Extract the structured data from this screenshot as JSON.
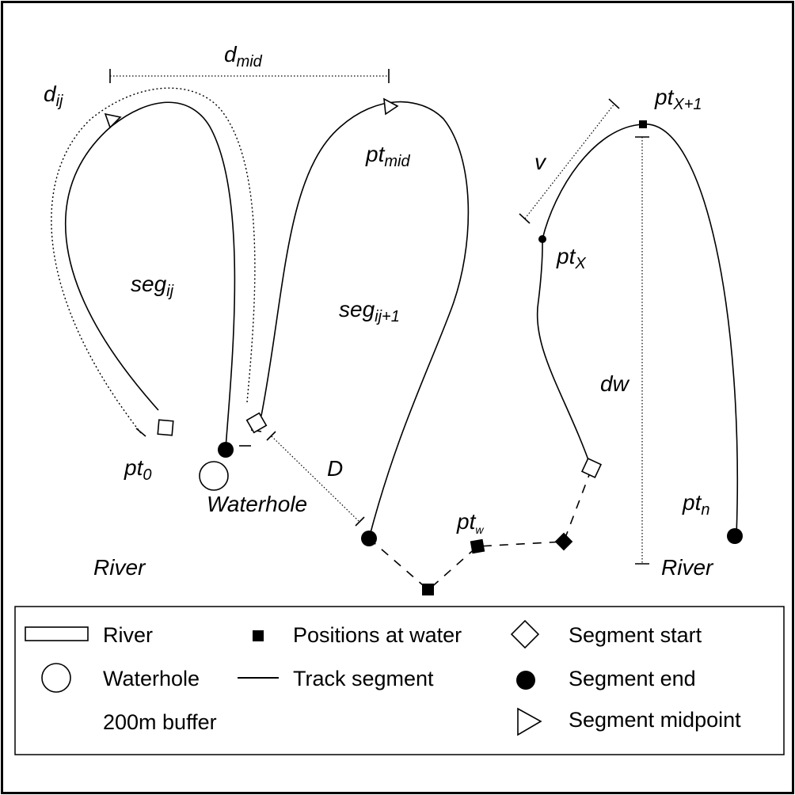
{
  "diagram": {
    "labels": {
      "d_main": "d",
      "d_sub": "mid",
      "dij_main": "d",
      "dij_sub": "ij",
      "ptmid_main": "pt",
      "ptmid_sub": "mid",
      "segij_main": "seg",
      "segij_sub": "ij",
      "segij1_main": "seg",
      "segij1_sub": "ij+1",
      "pt0_main": "pt",
      "pt0_sub": "0",
      "waterhole": "Waterhole",
      "D": "D",
      "ptw_main": "pt",
      "ptw_sub": "w",
      "river_left": "River",
      "river_right": "River",
      "v": "v",
      "ptx1_main": "pt",
      "ptx1_sub": "X+1",
      "ptx_main": "pt",
      "ptx_sub": "X",
      "dw": "dw",
      "ptn_main": "pt",
      "ptn_sub": "n"
    }
  },
  "legend": {
    "river": "River",
    "waterhole": "Waterhole",
    "buffer": "200m buffer",
    "positions_at_water": "Positions at water",
    "track_segment": "Track segment",
    "segment_start": "Segment start",
    "segment_end": "Segment end",
    "segment_midpoint": "Segment midpoint"
  }
}
